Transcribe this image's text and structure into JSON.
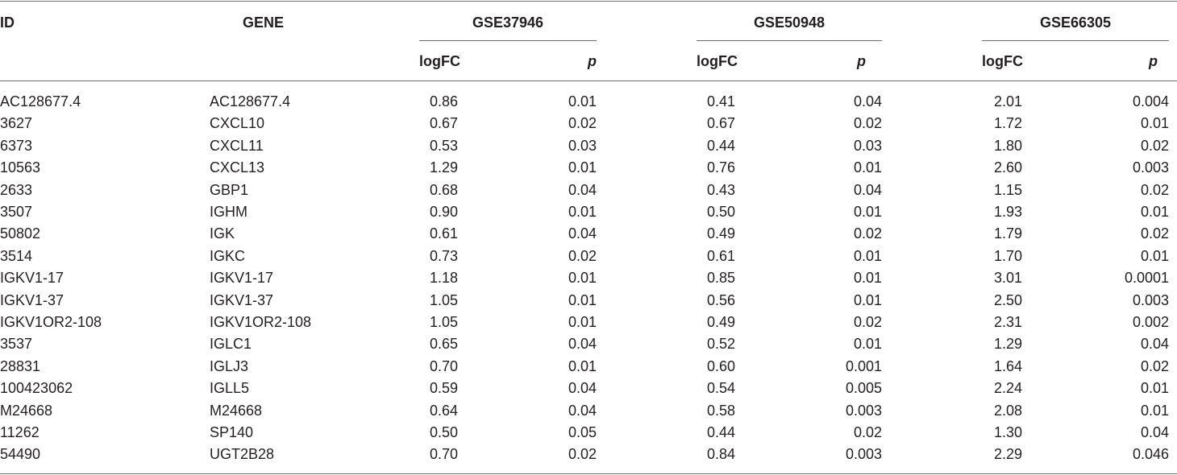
{
  "headers": {
    "id": "ID",
    "gene": "GENE",
    "groups": [
      "GSE37946",
      "GSE50948",
      "GSE66305"
    ],
    "logfc": "logFC",
    "p": "p"
  },
  "rows": [
    {
      "id": "AC128677.4",
      "gene": "AC128677.4",
      "v": [
        "0.86",
        "0.01",
        "0.41",
        "0.04",
        "2.01",
        "0.004"
      ]
    },
    {
      "id": "3627",
      "gene": "CXCL10",
      "v": [
        "0.67",
        "0.02",
        "0.67",
        "0.02",
        "1.72",
        "0.01"
      ]
    },
    {
      "id": "6373",
      "gene": "CXCL11",
      "v": [
        "0.53",
        "0.03",
        "0.44",
        "0.03",
        "1.80",
        "0.02"
      ]
    },
    {
      "id": "10563",
      "gene": "CXCL13",
      "v": [
        "1.29",
        "0.01",
        "0.76",
        "0.01",
        "2.60",
        "0.003"
      ]
    },
    {
      "id": "2633",
      "gene": "GBP1",
      "v": [
        "0.68",
        "0.04",
        "0.43",
        "0.04",
        "1.15",
        "0.02"
      ]
    },
    {
      "id": "3507",
      "gene": "IGHM",
      "v": [
        "0.90",
        "0.01",
        "0.50",
        "0.01",
        "1.93",
        "0.01"
      ]
    },
    {
      "id": "50802",
      "gene": "IGK",
      "v": [
        "0.61",
        "0.04",
        "0.49",
        "0.02",
        "1.79",
        "0.02"
      ]
    },
    {
      "id": "3514",
      "gene": "IGKC",
      "v": [
        "0.73",
        "0.02",
        "0.61",
        "0.01",
        "1.70",
        "0.01"
      ]
    },
    {
      "id": "IGKV1-17",
      "gene": "IGKV1-17",
      "v": [
        "1.18",
        "0.01",
        "0.85",
        "0.01",
        "3.01",
        "0.0001"
      ]
    },
    {
      "id": "IGKV1-37",
      "gene": "IGKV1-37",
      "v": [
        "1.05",
        "0.01",
        "0.56",
        "0.01",
        "2.50",
        "0.003"
      ]
    },
    {
      "id": "IGKV1OR2-108",
      "gene": "IGKV1OR2-108",
      "v": [
        "1.05",
        "0.01",
        "0.49",
        "0.02",
        "2.31",
        "0.002"
      ]
    },
    {
      "id": "3537",
      "gene": "IGLC1",
      "v": [
        "0.65",
        "0.04",
        "0.52",
        "0.01",
        "1.29",
        "0.04"
      ]
    },
    {
      "id": "28831",
      "gene": "IGLJ3",
      "v": [
        "0.70",
        "0.01",
        "0.60",
        "0.001",
        "1.64",
        "0.02"
      ]
    },
    {
      "id": "100423062",
      "gene": "IGLL5",
      "v": [
        "0.59",
        "0.04",
        "0.54",
        "0.005",
        "2.24",
        "0.01"
      ]
    },
    {
      "id": "M24668",
      "gene": "M24668",
      "v": [
        "0.64",
        "0.04",
        "0.58",
        "0.003",
        "2.08",
        "0.01"
      ]
    },
    {
      "id": "11262",
      "gene": "SP140",
      "v": [
        "0.50",
        "0.05",
        "0.44",
        "0.02",
        "1.30",
        "0.04"
      ]
    },
    {
      "id": "54490",
      "gene": "UGT2B28",
      "v": [
        "0.70",
        "0.02",
        "0.84",
        "0.003",
        "2.29",
        "0.046"
      ]
    }
  ]
}
